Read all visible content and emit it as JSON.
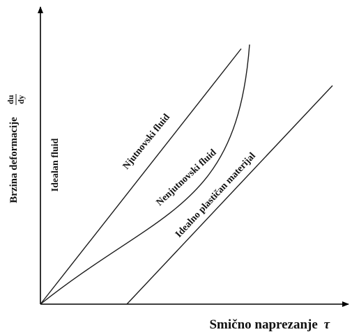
{
  "diagram": {
    "y_axis_label": {
      "text": "Brzina deformacije",
      "frac_num": "du",
      "frac_den": "dy"
    },
    "x_axis_label": {
      "text": "Smično naprezanje",
      "symbol": "τ"
    },
    "curve_labels": {
      "ideal_fluid": "Idealan fluid",
      "newtonian": "Njutnovski fluid",
      "non_newtonian": "Nenjutnovski fluid",
      "ideal_plastic": "Idealno plastičan materijal"
    }
  }
}
